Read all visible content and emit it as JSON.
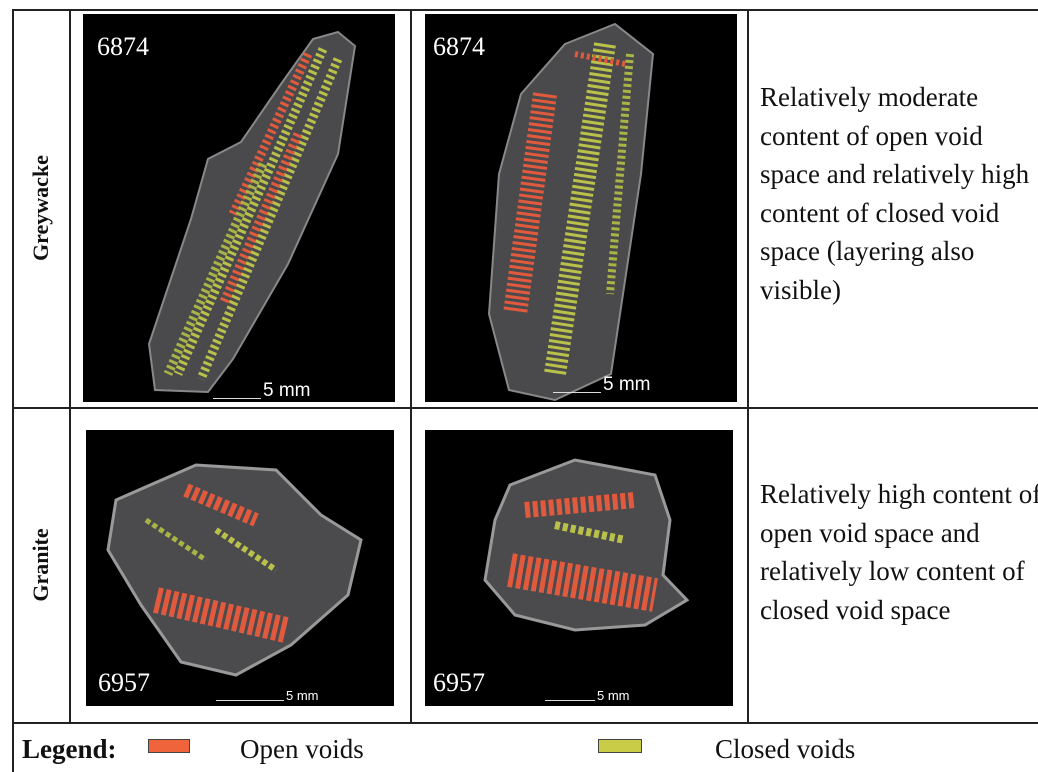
{
  "table": {
    "rows": [
      {
        "label": "Greywacke",
        "images": [
          {
            "sample": "6874",
            "scale": "5 mm"
          },
          {
            "sample": "6874",
            "scale": "5 mm"
          }
        ],
        "description": "Relatively moderate content of open void space and relatively high content of closed void space (layering also visible)"
      },
      {
        "label": "Granite",
        "images": [
          {
            "sample": "6957",
            "scale": "5 mm"
          },
          {
            "sample": "6957",
            "scale": "5 mm"
          }
        ],
        "description": "Relatively high content of open void space and relatively low content of closed void space"
      }
    ]
  },
  "legend": {
    "title": "Legend:",
    "items": [
      {
        "label": "Open voids",
        "color": "#f0643c"
      },
      {
        "label": "Closed voids",
        "color": "#c8cc46"
      }
    ]
  }
}
